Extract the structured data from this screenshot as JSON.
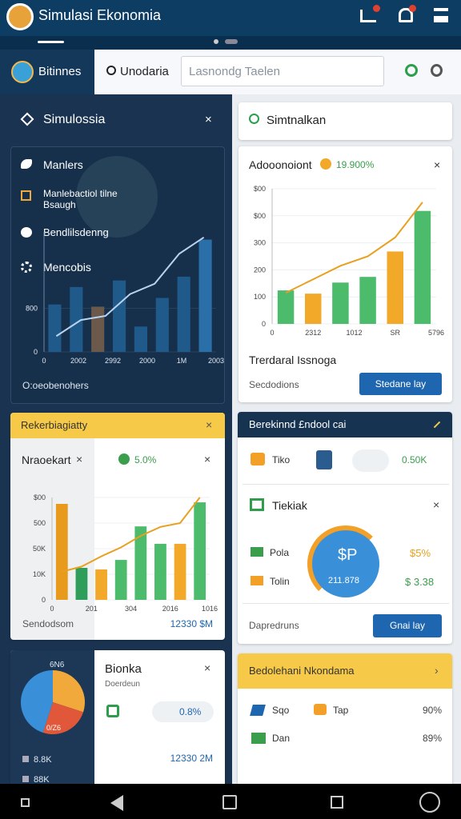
{
  "app_bar": {
    "title": "Simulasi Ekonomia"
  },
  "toolbar": {
    "brand": "Bitinnes",
    "search": "Unodaria",
    "input": "Lasnondg Taelen"
  },
  "left": {
    "header": "Simulossia",
    "menu_card": {
      "items": [
        "Manlers",
        "Manlebactiol tilne Bsaugh",
        "Bendlilsdenng",
        "Mencobis"
      ],
      "footer": "O:oeobenohers",
      "chart": {
        "type": "bar",
        "ylim": [
          0,
          2200
        ],
        "yticks": [
          800,
          0
        ],
        "xlabels": [
          "0",
          "2002",
          "2992",
          "2000",
          "1M",
          "2003"
        ],
        "values": [
          870,
          1190,
          830,
          1310,
          465,
          990,
          1380,
          2060
        ],
        "bar_colors": [
          "#1f5a8a",
          "#1f5a8a",
          "#6b5a4c",
          "#1f5a8a",
          "#1f5a8a",
          "#1f5a8a",
          "#1f5a8a",
          "#2a6fa8"
        ],
        "line": [
          290,
          585,
          660,
          1060,
          1250,
          1800,
          2100
        ],
        "line_color": "#b9d3ee"
      }
    },
    "market_card": {
      "header": "Rekerbiagiatty",
      "name": "Nraoekart",
      "badge": "5.0%",
      "footer": "Sendodsom",
      "total": "12330 $M",
      "chart": {
        "type": "bar",
        "ylim": [
          0,
          400
        ],
        "yticks": [
          {
            "value": 400,
            "label": "$00"
          },
          {
            "value": 300,
            "label": "500"
          },
          {
            "value": 200,
            "label": "50K"
          },
          {
            "value": 100,
            "label": "10K"
          },
          0
        ],
        "xlabels": [
          "0",
          "201",
          "304",
          "2016",
          "1016"
        ],
        "values": [
          375,
          125,
          119,
          156,
          287,
          219,
          219,
          381
        ],
        "bar_colors": [
          "#e89a1c",
          "#2f9e5a",
          "#f2a828",
          "#4cbb6c",
          "#4cbb6c",
          "#4cbb6c",
          "#f2a828",
          "#4cbb6c"
        ],
        "line": [
          110,
          130,
          170,
          205,
          250,
          285,
          300,
          400
        ],
        "line_color": "#e8a020"
      }
    },
    "bank_card": {
      "title": "Bionka",
      "subtitle": "Doerdeun",
      "badge": "0.8%",
      "total": "12330 2M",
      "pie_label": "6N6",
      "pie_center": "0/Z6",
      "legend": [
        "8.8K",
        "88K"
      ],
      "pie": {
        "type": "pie",
        "values": [
          30,
          25,
          45
        ],
        "colors": [
          "#f2a93b",
          "#e0573a",
          "#3a8fd9"
        ]
      }
    }
  },
  "right": {
    "header": "Simtnalkan",
    "growth_card": {
      "title": "Adooonoiont",
      "badge": "19.900%",
      "caption": "Trerdaral Issnoga",
      "footer": "Secdodions",
      "button": "Stedane lay",
      "chart": {
        "type": "bar",
        "ylim": [
          0,
          500
        ],
        "yticks": [
          {
            "value": 500,
            "label": "$00"
          },
          {
            "value": 400,
            "label": "$00"
          },
          300,
          200,
          100,
          0
        ],
        "xlabels": [
          "0",
          "2312",
          "1012",
          "SR",
          "5796"
        ],
        "values": [
          124,
          112,
          153,
          174,
          268,
          418
        ],
        "bar_colors": [
          "#4cbb6c",
          "#f2a828",
          "#4cbb6c",
          "#4cbb6c",
          "#f2a828",
          "#4cbb6c"
        ],
        "line": [
          115,
          165,
          215,
          250,
          320,
          450
        ],
        "line_color": "#e8a020"
      }
    },
    "balance_card": {
      "header": "Berekinnd £ndool cai",
      "row_label": "Tiko",
      "row_value": "0.50K",
      "sub_title": "Tiekiak",
      "items": [
        {
          "label": "Pola",
          "value": "$5%"
        },
        {
          "label": "Tolin",
          "value": "$ 3.38"
        }
      ],
      "donut_title": "$P",
      "donut_value": "211.878",
      "footer": "Dapredruns",
      "button": "Gnai lay"
    },
    "summary_card": {
      "header": "Bedolehani Nkondama",
      "rows": [
        {
          "label": "Sqo",
          "extra": "Tap",
          "value": "90%"
        },
        {
          "label": "Dan",
          "value": "89%"
        }
      ]
    }
  }
}
